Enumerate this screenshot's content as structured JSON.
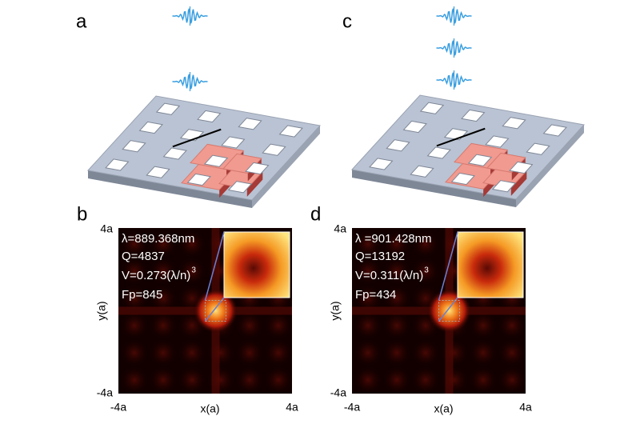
{
  "top": [
    {
      "label": "a"
    },
    {
      "label": "c"
    }
  ],
  "bottom": [
    {
      "label": "b",
      "y_top": "4a",
      "y_bottom": "-4a",
      "y_axis": "y(a)",
      "x_left": "-4a",
      "x_right": "4a",
      "x_axis": "x(a)",
      "wavelength": "λ=889.368nm",
      "q": "Q=4837",
      "v": "V=0.273(λ/n)",
      "v_exponent": "3",
      "fp": "Fp=845"
    },
    {
      "label": "d",
      "y_top": "4a",
      "y_bottom": "-4a",
      "y_axis": "y(a)",
      "x_left": "-4a",
      "x_right": "4a",
      "x_axis": "x(a)",
      "wavelength": "λ =901.428nm",
      "q": "Q=13192",
      "v": "V=0.311(λ/n)",
      "v_exponent": "3",
      "fp": "Fp=434"
    }
  ]
}
